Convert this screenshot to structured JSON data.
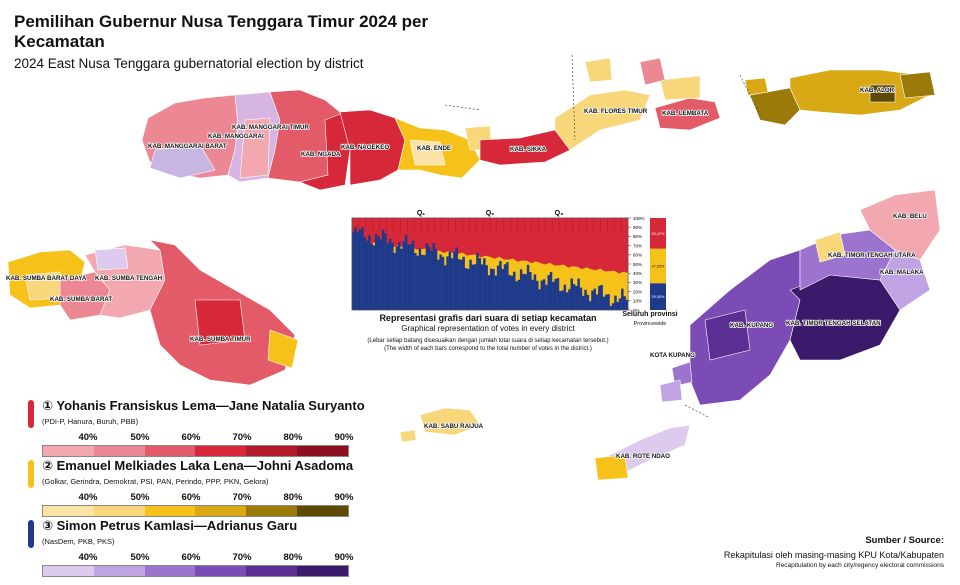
{
  "title": "Pemilihan Gubernur Nusa Tenggara Timur 2024 per Kecamatan",
  "subtitle": "2024 East Nusa Tenggara gubernatorial election by district",
  "colors": {
    "red": "#d7283a",
    "yellow": "#f6c21a",
    "blue": "#1f3a8a",
    "purple_dark": "#3b1a6b"
  },
  "regencies": [
    "KAB. MANGGARAI BARAT",
    "KAB. MANGGARAI",
    "KAB. MANGGARAI TIMUR",
    "KAB. NGADA",
    "KAB. NAGEKEO",
    "KAB. ENDE",
    "KAB. SIKKA",
    "KAB. FLORES TIMUR",
    "KAB. LEMBATA",
    "KAB. ALOR",
    "KAB. SUMBA BARAT DAYA",
    "KAB. SUMBA TENGAH",
    "KAB. SUMBA BARAT",
    "KAB. SUMBA TIMUR",
    "KAB. SABU RAIJUA",
    "KAB. BELU",
    "KAB. TIMOR TENGAH UTARA",
    "KAB. MALAKA",
    "KAB. KUPANG",
    "KAB. TIMOR TENGAH SELATAN",
    "KOTA KUPANG",
    "KAB. ROTE NDAO"
  ],
  "legend": [
    {
      "name": "① Yohanis Fransiskus Lema—Jane Natalia Suryanto",
      "parties": "(PDI-P, Hanura, Buruh, PBB)",
      "ramp": [
        "#f3a7ae",
        "#ec8893",
        "#e35a68",
        "#d7283a",
        "#b31b2c",
        "#8c1020"
      ]
    },
    {
      "name": "② Emanuel Melkiades Laka Lena—Johni Asadoma",
      "parties": "(Golkar, Gerindra, Demokrat, PSI, PAN, Perindo, PPP, PKN, Gelora)",
      "ramp": [
        "#fbe3a6",
        "#f8d67a",
        "#f6c21a",
        "#d8a815",
        "#9c7a0a",
        "#5e4a05"
      ]
    },
    {
      "name": "③ Simon Petrus Kamlasi—Adrianus Garu",
      "parties": "(NasDem, PKB, PKS)",
      "ramp": [
        "#dccbef",
        "#c0a3e3",
        "#9d73d0",
        "#7b4bb6",
        "#5a2e93",
        "#3b1a6b"
      ]
    }
  ],
  "legend_ticks": [
    "40%",
    "50%",
    "60%",
    "70%",
    "80%",
    "90%"
  ],
  "chart_data": {
    "type": "area",
    "title": "Representasi grafis dari suara di setiap kecamatan",
    "subtitle": "Graphical representation of votes in every district",
    "note_id": "(Lebar setiap batang disesuaikan dengan jumlah total suara di setiap kecamatan tersebut.)",
    "note_en": "(The width of each bars correspond to the total number of votes in the district.)",
    "quartile_labels": [
      "Q₁",
      "Q₂",
      "Q₃"
    ],
    "y_ticks": [
      "100%",
      "90%",
      "80%",
      "70%",
      "60%",
      "50%",
      "40%",
      "30%",
      "20%",
      "10%",
      "0%"
    ],
    "ylim": [
      0,
      100
    ],
    "provincewide": {
      "label": "Seluruh provinsi",
      "label_en": "Provincewide",
      "values": [
        {
          "name": "1",
          "value": 33.47,
          "label": "33,47%"
        },
        {
          "name": "2",
          "value": 37.53,
          "label": "37,53%"
        },
        {
          "name": "3",
          "value": 29.0,
          "label": "29,00%"
        }
      ]
    }
  },
  "source": {
    "label": "Sumber / Source:",
    "id": "Rekapitulasi oleh masing-masing KPU Kota/Kabupaten",
    "en": "Recapitulation by each city/regency electoral commissions"
  }
}
